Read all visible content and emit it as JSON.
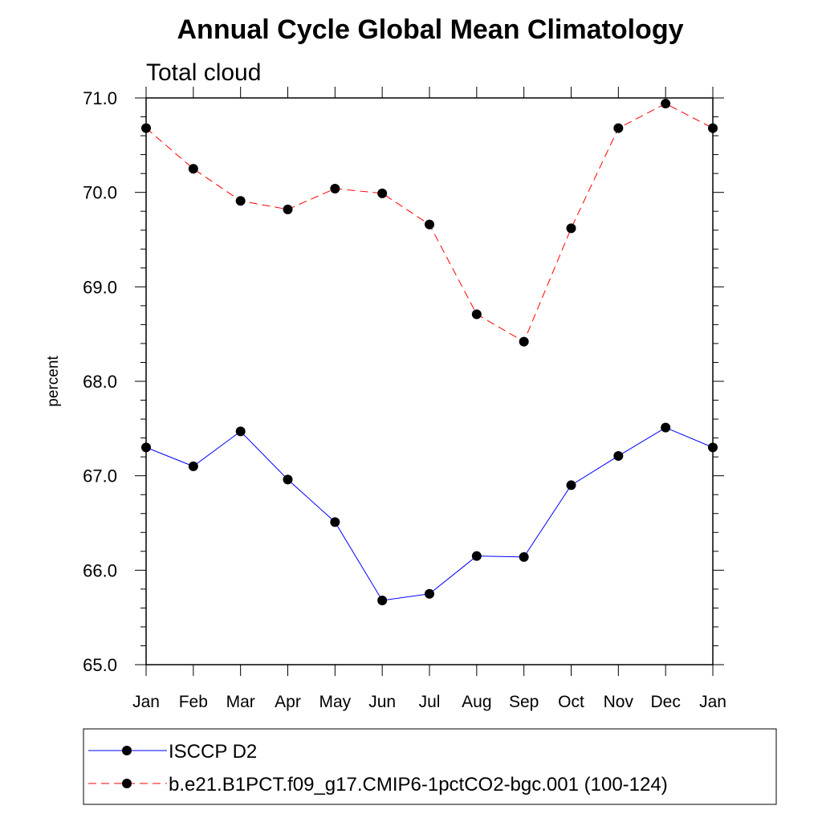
{
  "chart_data": {
    "type": "line",
    "title": "Annual Cycle Global Mean Climatology",
    "subtitle": "Total cloud",
    "xlabel": "",
    "ylabel": "percent",
    "ylim": [
      65.0,
      71.0
    ],
    "yticks": [
      "65.0",
      "66.0",
      "67.0",
      "68.0",
      "69.0",
      "70.0",
      "71.0"
    ],
    "categories": [
      "Jan",
      "Feb",
      "Mar",
      "Apr",
      "May",
      "Jun",
      "Jul",
      "Aug",
      "Sep",
      "Oct",
      "Nov",
      "Dec",
      "Jan"
    ],
    "series": [
      {
        "name": "ISCCP D2",
        "color": "#0000ff",
        "dash": "solid",
        "values": [
          67.3,
          67.1,
          67.47,
          66.96,
          66.51,
          65.68,
          65.75,
          66.15,
          66.14,
          66.9,
          67.21,
          67.51,
          67.3
        ]
      },
      {
        "name": "b.e21.B1PCT.f09_g17.CMIP6-1pctCO2-bgc.001 (100-124)",
        "color": "#ff0000",
        "dash": "dashed",
        "values": [
          70.68,
          70.25,
          69.91,
          69.82,
          70.04,
          69.99,
          69.66,
          68.71,
          68.42,
          69.62,
          70.68,
          70.94,
          70.68
        ]
      }
    ],
    "legend_position": "bottom"
  }
}
